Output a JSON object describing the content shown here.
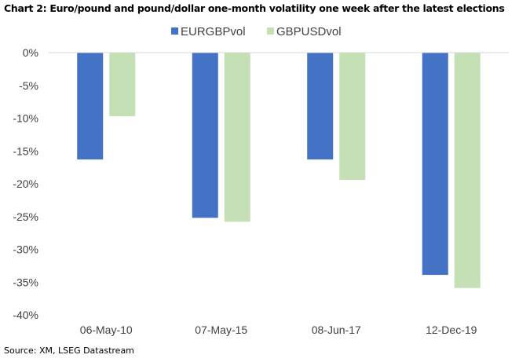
{
  "chart_data": {
    "type": "bar",
    "title": "Chart 2: Euro/pound and pound/dollar one-month volatility one week after the latest elections",
    "source": "Source: XM, LSEG Datastream",
    "categories": [
      "06-May-10",
      "07-May-15",
      "08-Jun-17",
      "12-Dec-19"
    ],
    "series": [
      {
        "name": "EURGBPvol",
        "color": "#4472C4",
        "values": [
          -16.3,
          -25.2,
          -16.3,
          -33.9
        ]
      },
      {
        "name": "GBPUSDvol",
        "color": "#C5E0B4",
        "values": [
          -9.7,
          -25.8,
          -19.4,
          -35.9
        ]
      }
    ],
    "ylim": [
      -40,
      0
    ],
    "yticks": [
      0,
      -5,
      -10,
      -15,
      -20,
      -25,
      -30,
      -35,
      -40
    ],
    "ytick_labels": [
      "0%",
      "-5%",
      "-10%",
      "-15%",
      "-20%",
      "-25%",
      "-30%",
      "-35%",
      "-40%"
    ],
    "xlabel": "",
    "ylabel": "",
    "legend_position": "top",
    "grid": false
  }
}
